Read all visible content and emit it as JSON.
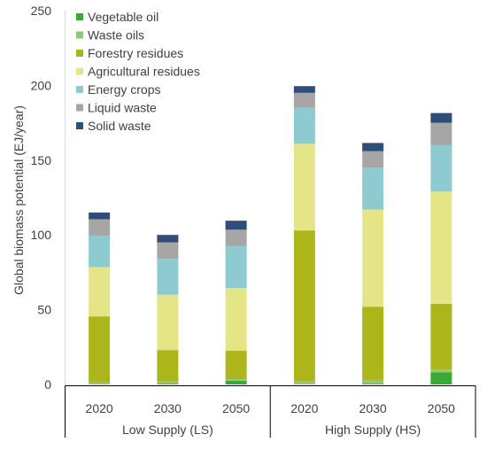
{
  "chart_data": {
    "type": "bar",
    "stacked": true,
    "ylabel": "Global biomass potential (EJ/year)",
    "ylim": [
      0,
      250
    ],
    "yticks": [
      0,
      50,
      100,
      150,
      200,
      250
    ],
    "categories": [
      "2020",
      "2030",
      "2050",
      "2020",
      "2030",
      "2050"
    ],
    "groups": [
      {
        "label": "Low Supply (LS)",
        "categories": [
          0,
          1,
          2
        ]
      },
      {
        "label": "High Supply (HS)",
        "categories": [
          3,
          4,
          5
        ]
      }
    ],
    "legend_position": "top-left",
    "series": [
      {
        "name": "Vegetable oil",
        "color": "#3aa935",
        "values": [
          0,
          0.5,
          2.5,
          0,
          0.5,
          8
        ]
      },
      {
        "name": "Waste oils",
        "color": "#8fc97a",
        "values": [
          1.5,
          1.5,
          1,
          2,
          2.5,
          2
        ]
      },
      {
        "name": "Forestry residues",
        "color": "#acb51a",
        "values": [
          44,
          21,
          19,
          101,
          49,
          44
        ]
      },
      {
        "name": "Agricultural residues",
        "color": "#e5e588",
        "values": [
          33,
          37,
          42,
          58,
          65,
          75
        ]
      },
      {
        "name": "Energy crops",
        "color": "#8ecbd1",
        "values": [
          21,
          24,
          28,
          24,
          28,
          31
        ]
      },
      {
        "name": "Liquid waste",
        "color": "#a6a6a6",
        "values": [
          11,
          11,
          11,
          10,
          11,
          15
        ]
      },
      {
        "name": "Solid waste",
        "color": "#2e4d78",
        "values": [
          4.5,
          5,
          6,
          4.5,
          5.5,
          6.5
        ]
      }
    ]
  }
}
